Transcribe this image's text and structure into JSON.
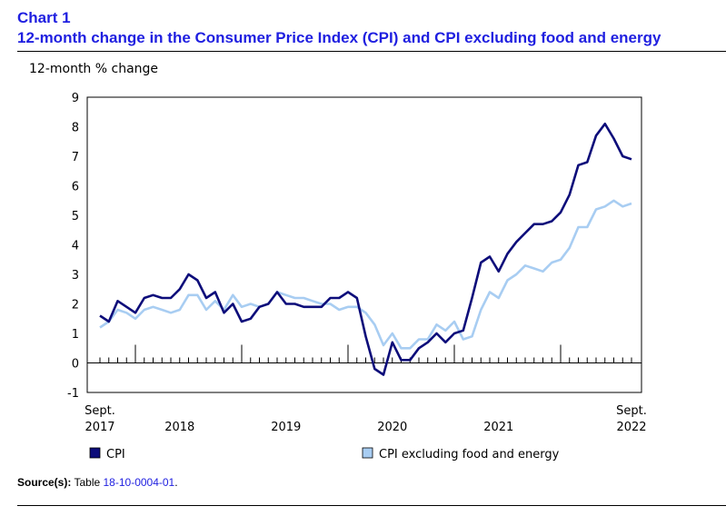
{
  "header": {
    "chart_label": "Chart 1",
    "title": "12-month change in the Consumer Price Index (CPI) and CPI excluding food and energy"
  },
  "source": {
    "label": "Source(s):",
    "text": "Table",
    "link": "18-10-0004-01",
    "suffix": "."
  },
  "colors": {
    "title": "#1f1fe0",
    "cpi": "#0d0d7a",
    "cpi_ex": "#a8cdf2"
  },
  "chart_data": {
    "type": "line",
    "ylabel": "12-month % change",
    "ylim": [
      -1,
      9
    ],
    "yticks": [
      -1,
      0,
      1,
      2,
      3,
      4,
      5,
      6,
      7,
      8,
      9
    ],
    "grid": false,
    "legend_position": "bottom",
    "x_labels": [
      {
        "top": "Sept.",
        "bottom": "2017",
        "at_month": 0
      },
      {
        "top": "",
        "bottom": "2018",
        "at_month": 9
      },
      {
        "top": "",
        "bottom": "2019",
        "at_month": 21
      },
      {
        "top": "",
        "bottom": "2020",
        "at_month": 33
      },
      {
        "top": "",
        "bottom": "2021",
        "at_month": 45
      },
      {
        "top": "Sept.",
        "bottom": "2022",
        "at_month": 60
      }
    ],
    "year_start_months": [
      4,
      16,
      28,
      40,
      52
    ],
    "x_start": "2017-09",
    "x_end": "2022-09",
    "series": [
      {
        "name": "CPI",
        "color": "#0d0d7a",
        "values": [
          1.6,
          1.4,
          2.1,
          1.9,
          1.7,
          2.2,
          2.3,
          2.2,
          2.2,
          2.5,
          3.0,
          2.8,
          2.2,
          2.4,
          1.7,
          2.0,
          1.4,
          1.5,
          1.9,
          2.0,
          2.4,
          2.0,
          2.0,
          1.9,
          1.9,
          1.9,
          2.2,
          2.2,
          2.4,
          2.2,
          0.9,
          -0.2,
          -0.4,
          0.7,
          0.1,
          0.1,
          0.5,
          0.7,
          1.0,
          0.7,
          1.0,
          1.1,
          2.2,
          3.4,
          3.6,
          3.1,
          3.7,
          4.1,
          4.4,
          4.7,
          4.7,
          4.8,
          5.1,
          5.7,
          6.7,
          6.8,
          7.7,
          8.1,
          7.6,
          7.0,
          6.9
        ]
      },
      {
        "name": "CPI excluding food and energy",
        "color": "#a8cdf2",
        "values": [
          1.2,
          1.4,
          1.8,
          1.7,
          1.5,
          1.8,
          1.9,
          1.8,
          1.7,
          1.8,
          2.3,
          2.3,
          1.8,
          2.1,
          1.8,
          2.3,
          1.9,
          2.0,
          1.9,
          2.0,
          2.4,
          2.3,
          2.2,
          2.2,
          2.1,
          2.0,
          2.0,
          1.8,
          1.9,
          1.9,
          1.7,
          1.3,
          0.6,
          1.0,
          0.5,
          0.5,
          0.8,
          0.8,
          1.3,
          1.1,
          1.4,
          0.8,
          0.9,
          1.8,
          2.4,
          2.2,
          2.8,
          3.0,
          3.3,
          3.2,
          3.1,
          3.4,
          3.5,
          3.9,
          4.6,
          4.6,
          5.2,
          5.3,
          5.5,
          5.3,
          5.4
        ]
      }
    ]
  }
}
